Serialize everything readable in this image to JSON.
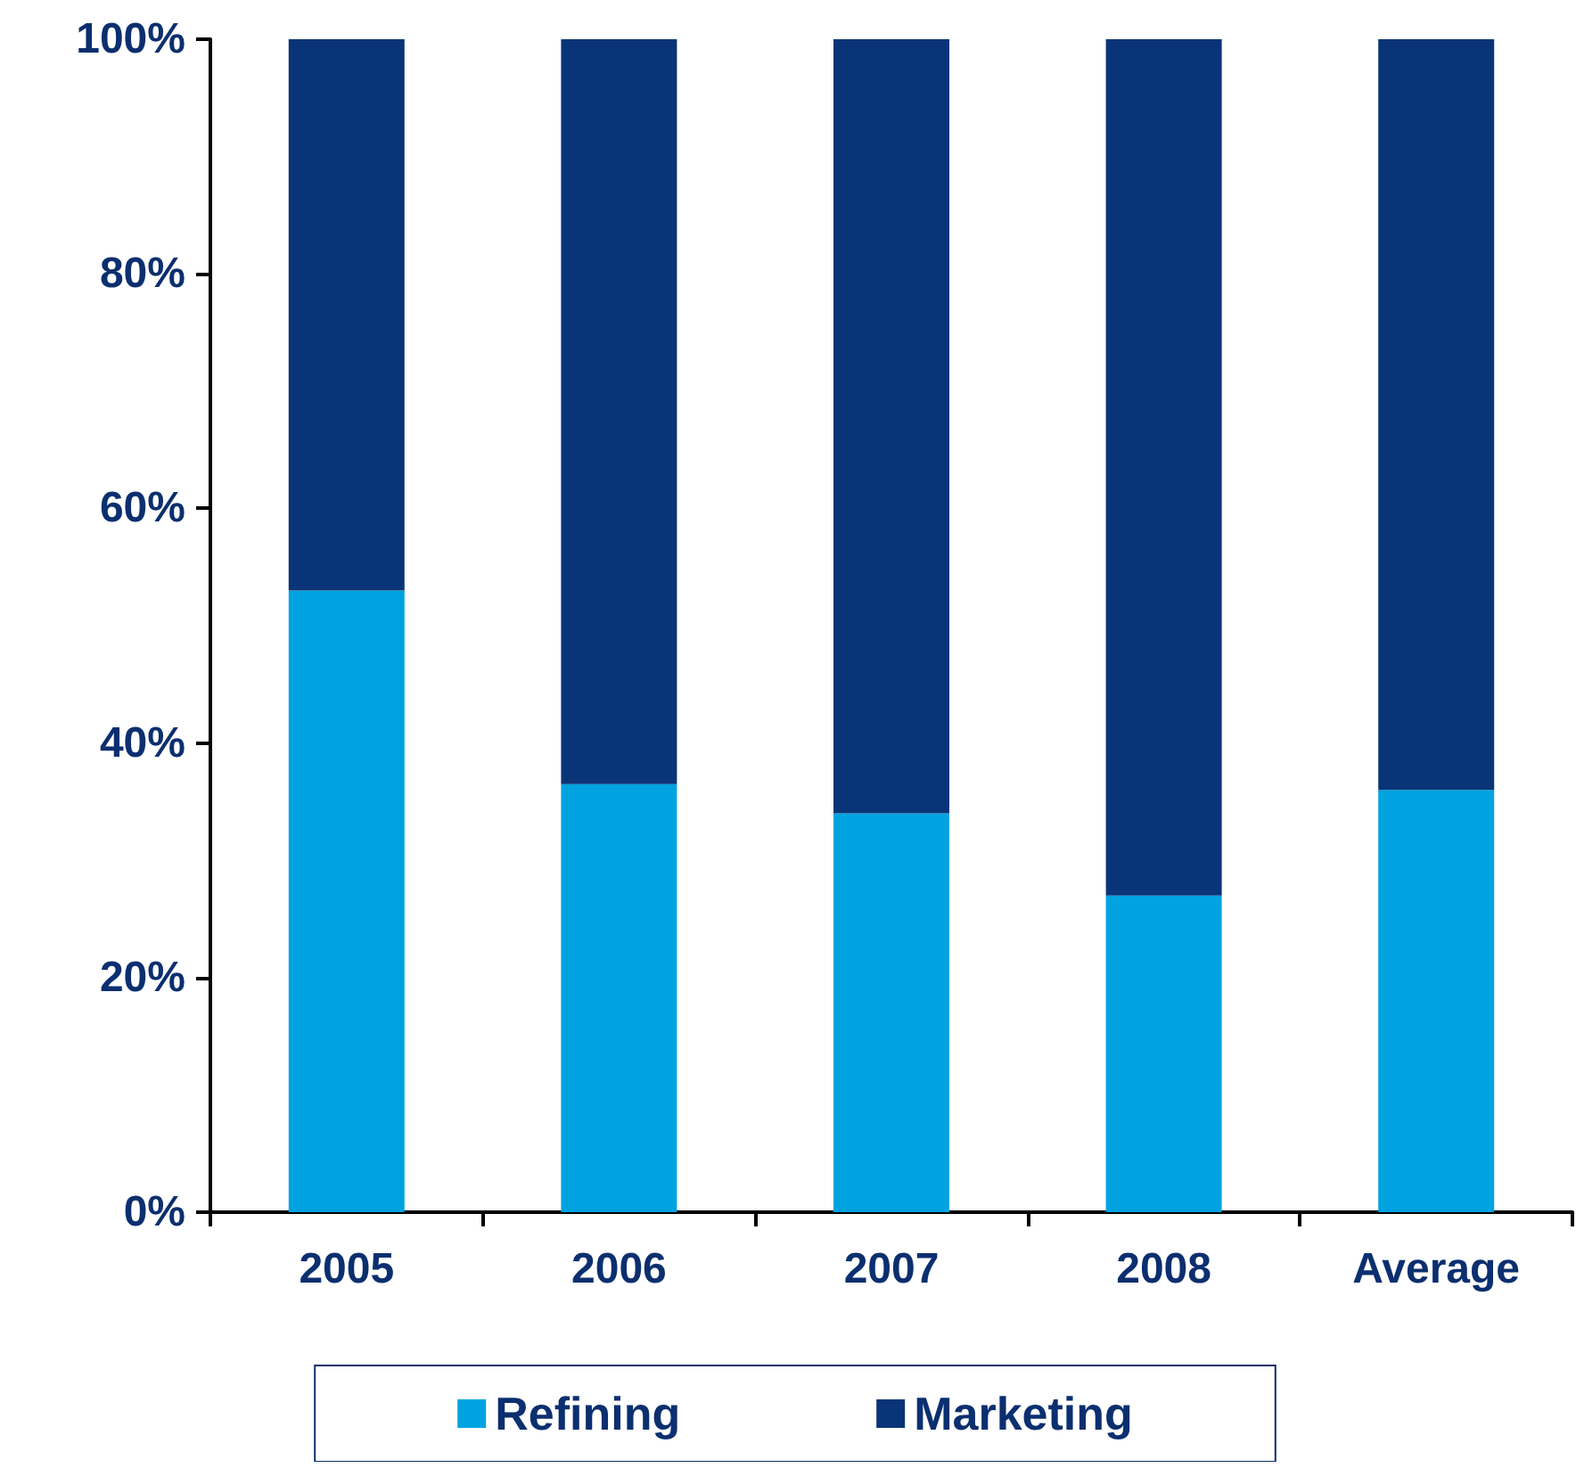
{
  "chart_data": {
    "type": "bar",
    "stacked": true,
    "categories": [
      "2005",
      "2006",
      "2007",
      "2008",
      "Average"
    ],
    "series": [
      {
        "name": "Refining",
        "color": "#00a3e0",
        "values": [
          53,
          36.5,
          34,
          27,
          36
        ]
      },
      {
        "name": "Marketing",
        "color": "#0a3478",
        "values": [
          47,
          63.5,
          66,
          73,
          64
        ]
      }
    ],
    "ylim": [
      0,
      100
    ],
    "yticks": [
      {
        "value": 0,
        "label": "0%"
      },
      {
        "value": 20,
        "label": "20%"
      },
      {
        "value": 40,
        "label": "40%"
      },
      {
        "value": 60,
        "label": "60%"
      },
      {
        "value": 80,
        "label": "80%"
      },
      {
        "value": 100,
        "label": "100%"
      }
    ],
    "grid": false,
    "legend": "bottom"
  }
}
